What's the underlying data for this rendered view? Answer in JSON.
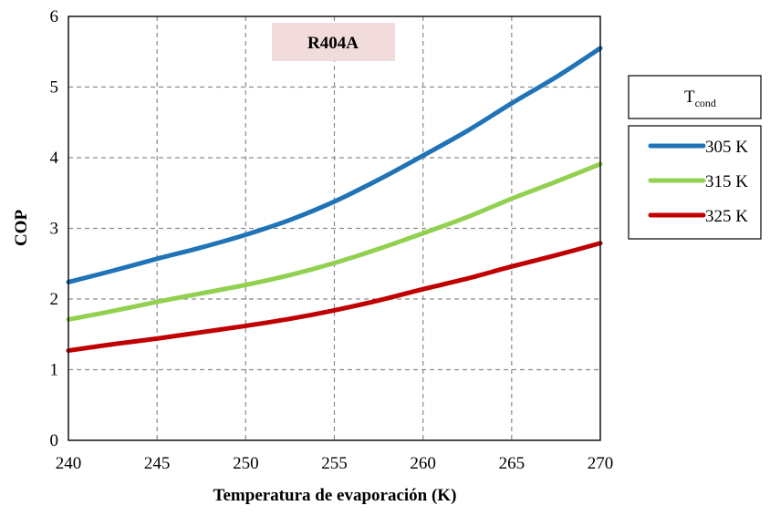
{
  "chart_data": {
    "type": "line",
    "title": "R404A",
    "xlabel": "Temperatura de evaporación (K)",
    "ylabel": "COP",
    "xlim": [
      240,
      270
    ],
    "ylim": [
      0,
      6
    ],
    "xticks": [
      "240",
      "245",
      "250",
      "255",
      "260",
      "265",
      "270"
    ],
    "yticks": [
      "0",
      "1",
      "2",
      "3",
      "4",
      "5",
      "6"
    ],
    "grid": true,
    "legend_position": "right",
    "legend_title_main": "T",
    "legend_title_sub": "cond",
    "x": [
      240,
      242.5,
      245,
      247.5,
      250,
      252.5,
      255,
      257.5,
      260,
      262.5,
      265,
      267.5,
      270
    ],
    "series": [
      {
        "name": "305 K",
        "color": "#1f73b6",
        "values": [
          2.24,
          2.4,
          2.57,
          2.73,
          2.91,
          3.12,
          3.38,
          3.69,
          4.03,
          4.38,
          4.77,
          5.14,
          5.55
        ]
      },
      {
        "name": "315 K",
        "color": "#92d050",
        "values": [
          1.71,
          1.83,
          1.96,
          2.08,
          2.2,
          2.34,
          2.51,
          2.71,
          2.93,
          3.16,
          3.42,
          3.66,
          3.91
        ]
      },
      {
        "name": "325 K",
        "color": "#c00000",
        "values": [
          1.27,
          1.36,
          1.44,
          1.53,
          1.62,
          1.72,
          1.84,
          1.98,
          2.14,
          2.29,
          2.46,
          2.62,
          2.79
        ]
      }
    ]
  }
}
